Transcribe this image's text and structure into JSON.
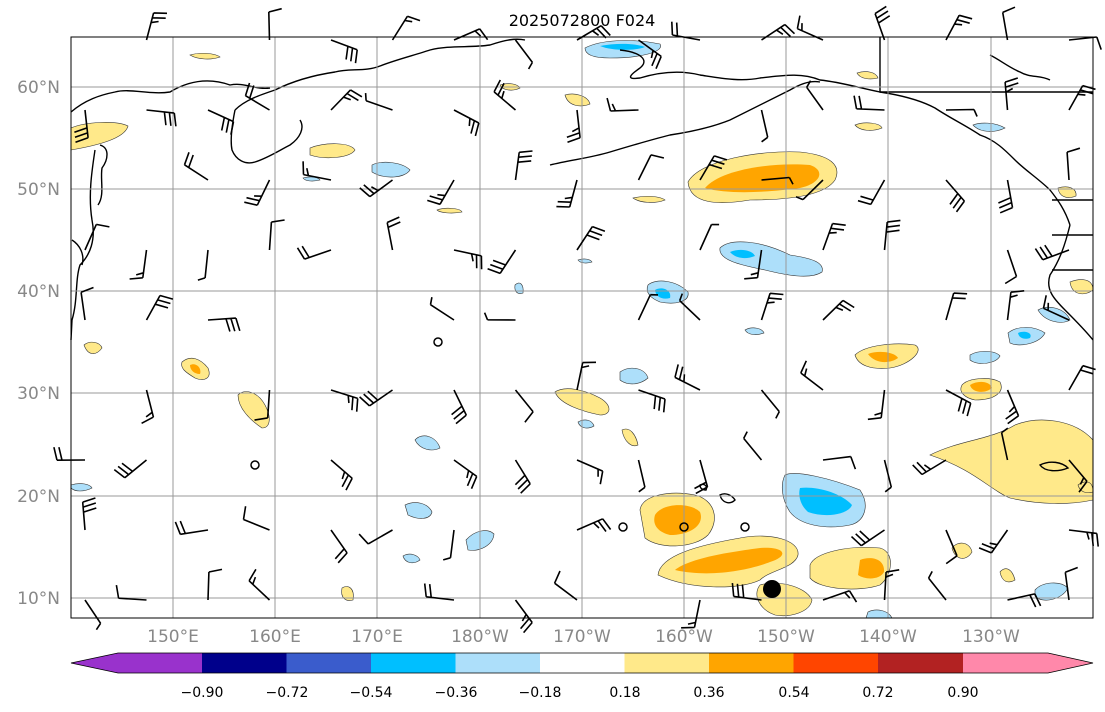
{
  "title": "2025072800 F024",
  "lat_labels": [
    "60°N",
    "50°N",
    "40°N",
    "30°N",
    "20°N",
    "10°N"
  ],
  "lon_labels": [
    "150°E",
    "160°E",
    "170°E",
    "180°W",
    "170°W",
    "160°W",
    "150°W",
    "140°W",
    "130°W"
  ],
  "colorbar": {
    "tick_labels": [
      "−0.90",
      "−0.72",
      "−0.54",
      "−0.36",
      "−0.18",
      "0.18",
      "0.36",
      "0.54",
      "0.72",
      "0.90"
    ],
    "colors": [
      "#9932CC",
      "#00008B",
      "#3A5CCC",
      "#00BFFF",
      "#ADDFFA",
      "#FFFFFF",
      "#FFE98A",
      "#FFA500",
      "#FF4500",
      "#B22222",
      "#FF88AA"
    ]
  },
  "map_data": {
    "type": "contour_map",
    "domain": {
      "lon": [
        140,
        240
      ],
      "lat": [
        8,
        65
      ]
    },
    "grid": true,
    "fields": "filled contours with wind barbs"
  }
}
